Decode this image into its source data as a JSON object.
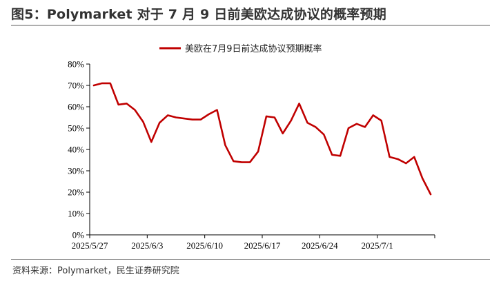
{
  "figure": {
    "title": "图5：Polymarket 对于 7 月 9 日前美欧达成协议的概率预期",
    "source": "资料来源：Polymarket，民生证券研究院"
  },
  "chart_data": {
    "type": "line",
    "title": "",
    "xlabel": "",
    "ylabel": "",
    "ylim": [
      0,
      80
    ],
    "y_ticks": [
      "0%",
      "10%",
      "20%",
      "30%",
      "40%",
      "50%",
      "60%",
      "70%",
      "80%"
    ],
    "x_tick_labels": [
      "2025/5/27",
      "2025/6/3",
      "2025/6/10",
      "2025/6/17",
      "2025/6/24",
      "2025/7/1"
    ],
    "x_ticks_at_index": [
      0,
      7,
      14,
      21,
      28,
      35
    ],
    "legend": "top-center",
    "grid": false,
    "line_color": "#C00000",
    "series": [
      {
        "name": "美欧在7月9日前达成协议预期概率",
        "values": [
          70,
          71,
          71,
          61,
          61.5,
          58.5,
          53,
          43.5,
          52.5,
          56,
          55,
          54.5,
          54,
          54,
          56.5,
          58.5,
          42,
          34.5,
          34,
          34,
          39,
          55.5,
          55,
          47.5,
          53.5,
          61.5,
          52.5,
          50.5,
          47,
          37.5,
          37,
          50,
          52,
          50.5,
          56,
          53.5,
          36.5,
          35.5,
          33.5,
          36.5,
          26.5,
          19
        ]
      }
    ]
  }
}
